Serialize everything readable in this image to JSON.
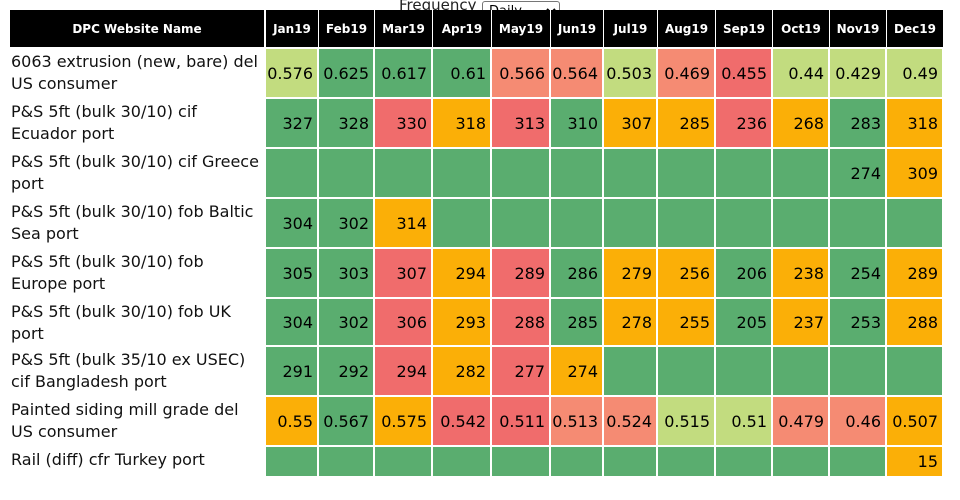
{
  "frequency": {
    "label": "Frequency",
    "selected": "Daily",
    "options": [
      "Daily"
    ]
  },
  "table": {
    "name_header": "DPC Website Name",
    "months": [
      "Jan19",
      "Feb19",
      "Mar19",
      "Apr19",
      "May19",
      "Jun19",
      "Jul19",
      "Aug19",
      "Sep19",
      "Oct19",
      "Nov19",
      "Dec19"
    ],
    "colors": {
      "green": "#5aad6f",
      "light_green": "#c2dc7f",
      "orange": "#fbaf07",
      "salmon": "#f58b73",
      "red": "#f06c6c"
    },
    "rows": [
      {
        "name": "6063 extrusion (new, bare) del US consumer",
        "values": [
          "0.576",
          "0.625",
          "0.617",
          "0.61",
          "0.566",
          "0.564",
          "0.503",
          "0.469",
          "0.455",
          "0.44",
          "0.429",
          "0.49"
        ],
        "colors": [
          "light_green",
          "green",
          "green",
          "green",
          "salmon",
          "salmon",
          "light_green",
          "salmon",
          "red",
          "light_green",
          "light_green",
          "light_green"
        ]
      },
      {
        "name": "P&S 5ft (bulk 30/10) cif Ecuador port",
        "values": [
          "327",
          "328",
          "330",
          "318",
          "313",
          "310",
          "307",
          "285",
          "236",
          "268",
          "283",
          "318"
        ],
        "colors": [
          "green",
          "green",
          "red",
          "orange",
          "red",
          "green",
          "orange",
          "orange",
          "red",
          "orange",
          "green",
          "orange"
        ]
      },
      {
        "name": "P&S 5ft (bulk 30/10) cif Greece port",
        "values": [
          "",
          "",
          "",
          "",
          "",
          "",
          "",
          "",
          "",
          "",
          "274",
          "309"
        ],
        "colors": [
          "green",
          "green",
          "green",
          "green",
          "green",
          "green",
          "green",
          "green",
          "green",
          "green",
          "green",
          "orange"
        ]
      },
      {
        "name": "P&S 5ft (bulk 30/10) fob Baltic Sea port",
        "values": [
          "304",
          "302",
          "314",
          "",
          "",
          "",
          "",
          "",
          "",
          "",
          "",
          ""
        ],
        "colors": [
          "green",
          "green",
          "orange",
          "green",
          "green",
          "green",
          "green",
          "green",
          "green",
          "green",
          "green",
          "green"
        ]
      },
      {
        "name": "P&S 5ft (bulk 30/10) fob Europe port",
        "values": [
          "305",
          "303",
          "307",
          "294",
          "289",
          "286",
          "279",
          "256",
          "206",
          "238",
          "254",
          "289"
        ],
        "colors": [
          "green",
          "green",
          "red",
          "orange",
          "red",
          "green",
          "orange",
          "orange",
          "green",
          "orange",
          "green",
          "orange"
        ]
      },
      {
        "name": "P&S 5ft (bulk 30/10) fob UK port",
        "values": [
          "304",
          "302",
          "306",
          "293",
          "288",
          "285",
          "278",
          "255",
          "205",
          "237",
          "253",
          "288"
        ],
        "colors": [
          "green",
          "green",
          "red",
          "orange",
          "red",
          "green",
          "orange",
          "orange",
          "green",
          "orange",
          "green",
          "orange"
        ]
      },
      {
        "name": "P&S 5ft (bulk 35/10 ex USEC) cif Bangladesh port",
        "values": [
          "291",
          "292",
          "294",
          "282",
          "277",
          "274",
          "",
          "",
          "",
          "",
          "",
          ""
        ],
        "colors": [
          "green",
          "green",
          "red",
          "orange",
          "red",
          "orange",
          "green",
          "green",
          "green",
          "green",
          "green",
          "green"
        ]
      },
      {
        "name": "Painted siding mill grade del US consumer",
        "values": [
          "0.55",
          "0.567",
          "0.575",
          "0.542",
          "0.511",
          "0.513",
          "0.524",
          "0.515",
          "0.51",
          "0.479",
          "0.46",
          "0.507"
        ],
        "colors": [
          "orange",
          "green",
          "orange",
          "red",
          "red",
          "salmon",
          "salmon",
          "light_green",
          "light_green",
          "salmon",
          "salmon",
          "orange"
        ]
      },
      {
        "name": "Rail (diff) cfr Turkey port",
        "values": [
          "",
          "",
          "",
          "",
          "",
          "",
          "",
          "",
          "",
          "",
          "",
          "15"
        ],
        "colors": [
          "green",
          "green",
          "green",
          "green",
          "green",
          "green",
          "green",
          "green",
          "green",
          "green",
          "green",
          "orange"
        ]
      }
    ]
  }
}
